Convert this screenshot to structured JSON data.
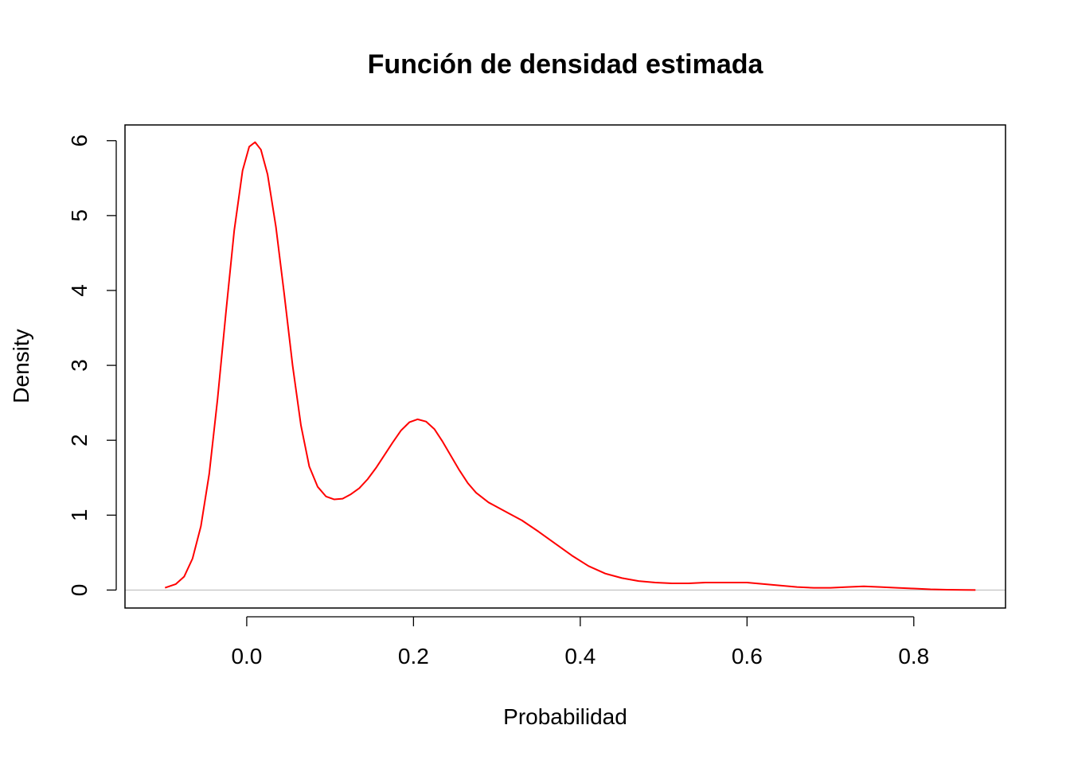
{
  "chart_data": {
    "type": "line",
    "title": "Función de densidad estimada",
    "xlabel": "Probabilidad",
    "ylabel": "Density",
    "xlim": [
      -0.146,
      0.91
    ],
    "ylim": [
      -0.24,
      6.21
    ],
    "x_ticks": [
      0.0,
      0.2,
      0.4,
      0.6,
      0.8
    ],
    "x_tick_labels": [
      "0.0",
      "0.2",
      "0.4",
      "0.6",
      "0.8"
    ],
    "y_ticks": [
      0,
      1,
      2,
      3,
      4,
      5,
      6
    ],
    "y_tick_labels": [
      "0",
      "1",
      "2",
      "3",
      "4",
      "5",
      "6"
    ],
    "grid": false,
    "zero_line": true,
    "zero_line_color": "#bebebe",
    "series": [
      {
        "color": "#ff0000",
        "x": [
          -0.098,
          -0.085,
          -0.075,
          -0.065,
          -0.055,
          -0.045,
          -0.035,
          -0.025,
          -0.015,
          -0.005,
          0.003,
          0.01,
          0.017,
          0.025,
          0.035,
          0.045,
          0.055,
          0.065,
          0.075,
          0.085,
          0.095,
          0.105,
          0.115,
          0.125,
          0.135,
          0.145,
          0.155,
          0.165,
          0.175,
          0.185,
          0.195,
          0.205,
          0.215,
          0.225,
          0.235,
          0.245,
          0.255,
          0.265,
          0.275,
          0.29,
          0.31,
          0.33,
          0.35,
          0.37,
          0.39,
          0.41,
          0.43,
          0.45,
          0.47,
          0.49,
          0.51,
          0.53,
          0.55,
          0.58,
          0.6,
          0.62,
          0.64,
          0.66,
          0.68,
          0.7,
          0.72,
          0.74,
          0.76,
          0.78,
          0.8,
          0.82,
          0.84,
          0.86,
          0.874
        ],
        "y": [
          0.03,
          0.08,
          0.18,
          0.42,
          0.85,
          1.55,
          2.55,
          3.7,
          4.8,
          5.6,
          5.92,
          5.98,
          5.88,
          5.55,
          4.85,
          3.95,
          3.0,
          2.2,
          1.65,
          1.38,
          1.25,
          1.21,
          1.22,
          1.28,
          1.36,
          1.48,
          1.63,
          1.8,
          1.97,
          2.13,
          2.24,
          2.28,
          2.25,
          2.15,
          1.98,
          1.79,
          1.6,
          1.43,
          1.3,
          1.17,
          1.05,
          0.93,
          0.78,
          0.62,
          0.46,
          0.32,
          0.22,
          0.16,
          0.12,
          0.1,
          0.09,
          0.09,
          0.1,
          0.1,
          0.1,
          0.08,
          0.06,
          0.04,
          0.03,
          0.03,
          0.04,
          0.05,
          0.04,
          0.03,
          0.02,
          0.01,
          0.005,
          0.002,
          0.001
        ]
      }
    ]
  }
}
